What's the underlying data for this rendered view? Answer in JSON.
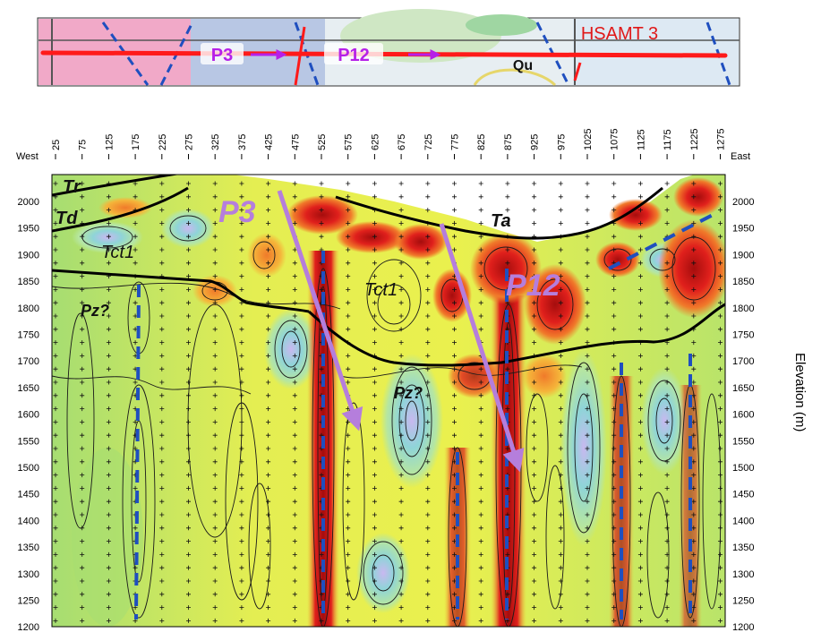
{
  "strip": {
    "title": "HSAMT 3",
    "profile_labels": [
      "P3",
      "P12"
    ],
    "unit": "Qu"
  },
  "section": {
    "left_edge_label": "West",
    "right_edge_label": "East",
    "right_axis_title": "Elevation (m)",
    "station_ticks": [
      "25",
      "75",
      "125",
      "175",
      "225",
      "275",
      "325",
      "375",
      "425",
      "475",
      "525",
      "575",
      "625",
      "675",
      "725",
      "775",
      "825",
      "875",
      "925",
      "975",
      "1025",
      "1075",
      "1125",
      "1175",
      "1225",
      "1275"
    ],
    "elevation_ticks": [
      "2000",
      "1950",
      "1900",
      "1850",
      "1800",
      "1750",
      "1700",
      "1650",
      "1600",
      "1550",
      "1500",
      "1450",
      "1400",
      "1350",
      "1300",
      "1250",
      "1200"
    ],
    "unit_labels": [
      "Tr",
      "Td",
      "Tct1",
      "Pz?",
      "Tct1",
      "Pz?",
      "Ta"
    ],
    "profile_labels": [
      "P3",
      "P12"
    ]
  },
  "colors": {
    "low": "#8fd4d8",
    "mid": "#e9ef4c",
    "high": "#e0201c",
    "profile_arrow": "#b57edc",
    "fault_dash": "#1f4fbf",
    "strip_line": "#ff1a1a"
  }
}
